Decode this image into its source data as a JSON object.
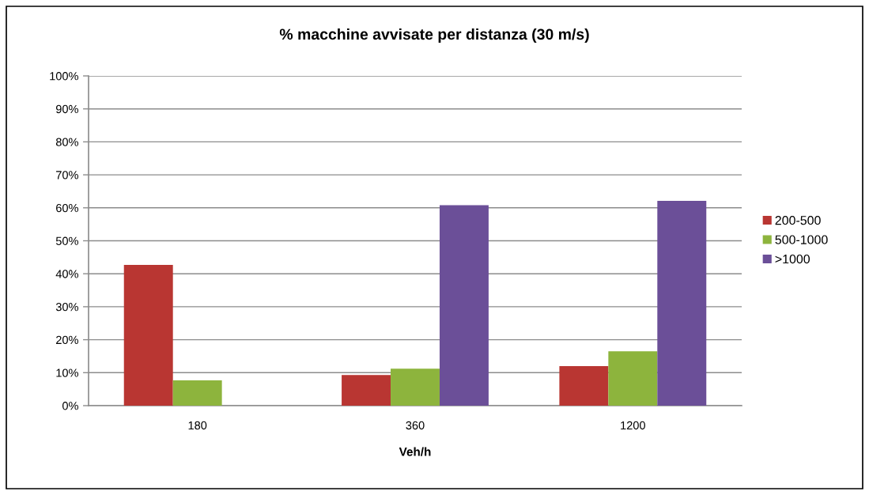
{
  "chart_data": {
    "type": "bar",
    "title": "% macchine avvisate per distanza (30 m/s)",
    "xlabel": "Veh/h",
    "categories": [
      "180",
      "360",
      "1200"
    ],
    "series": [
      {
        "name": "200-500",
        "color": "#b93632",
        "values": [
          42.7,
          9.3,
          12.0
        ]
      },
      {
        "name": "500-1000",
        "color": "#8db43d",
        "values": [
          7.7,
          11.2,
          16.5
        ]
      },
      {
        "name": ">1000",
        "color": "#6b4f98",
        "values": [
          null,
          60.8,
          62.1
        ]
      }
    ],
    "ylim": [
      0,
      100
    ],
    "yticks": [
      {
        "value": 0,
        "label": "0%"
      },
      {
        "value": 10,
        "label": "10%"
      },
      {
        "value": 20,
        "label": "20%"
      },
      {
        "value": 30,
        "label": "30%"
      },
      {
        "value": 40,
        "label": "40%"
      },
      {
        "value": 50,
        "label": "50%"
      },
      {
        "value": 60,
        "label": "60%"
      },
      {
        "value": 70,
        "label": "70%"
      },
      {
        "value": 80,
        "label": "80%"
      },
      {
        "value": 90,
        "label": "90%"
      },
      {
        "value": 100,
        "label": "100%"
      }
    ],
    "grid": "y",
    "legend": "right"
  }
}
